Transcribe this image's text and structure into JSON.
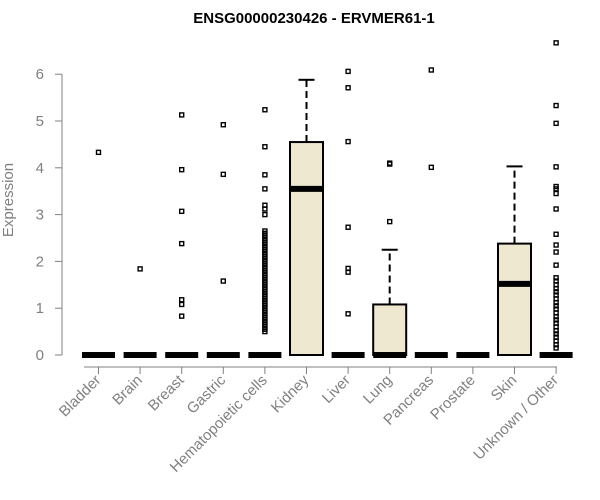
{
  "chart_data": {
    "type": "boxplot",
    "title": "ENSG00000230426 - ERVMER61-1",
    "xlabel": "",
    "ylabel": "Expression",
    "ylim": [
      0,
      6.7
    ],
    "yticks": [
      0,
      1,
      2,
      3,
      4,
      5,
      6
    ],
    "grid": false,
    "legend": "none",
    "colors": {
      "box_fill": "#EEE8D0",
      "box_stroke": "#000000",
      "median": "#000000",
      "axis": "#808080",
      "tick_text": "#808080"
    },
    "categories": [
      "Bladder",
      "Brain",
      "Breast",
      "Gastric",
      "Hematopoietic cells",
      "Kidney",
      "Liver",
      "Lung",
      "Pancreas",
      "Prostate",
      "Skin",
      "Unknown / Other"
    ],
    "boxes": [
      {
        "category": "Bladder",
        "min": 0,
        "q1": 0,
        "median": 0,
        "q3": 0,
        "max": 0,
        "outliers": [
          4.33
        ]
      },
      {
        "category": "Brain",
        "min": 0,
        "q1": 0,
        "median": 0,
        "q3": 0,
        "max": 0,
        "outliers": [
          1.84
        ]
      },
      {
        "category": "Breast",
        "min": 0,
        "q1": 0,
        "median": 0,
        "q3": 0,
        "max": 0,
        "outliers": [
          5.13,
          3.96,
          3.07,
          2.38,
          1.18,
          1.08,
          0.83
        ]
      },
      {
        "category": "Gastric",
        "min": 0,
        "q1": 0,
        "median": 0,
        "q3": 0,
        "max": 0,
        "outliers": [
          4.92,
          3.86,
          1.58
        ]
      },
      {
        "category": "Hematopoietic cells",
        "min": 0,
        "q1": 0,
        "median": 0,
        "q3": 0,
        "max": 0,
        "outliers": [
          5.24,
          4.45,
          3.85,
          3.55,
          3.2,
          3.12,
          3.0,
          2.65,
          2.6,
          2.55,
          2.5,
          2.45,
          2.4,
          2.35,
          2.3,
          2.25,
          2.2,
          2.15,
          2.1,
          2.05,
          2.0,
          1.95,
          1.9,
          1.85,
          1.8,
          1.75,
          1.7,
          1.65,
          1.6,
          1.55,
          1.5,
          1.45,
          1.4,
          1.35,
          1.3,
          1.25,
          1.2,
          1.15,
          1.1,
          1.05,
          1.0,
          0.95,
          0.9,
          0.85,
          0.8,
          0.75,
          0.7,
          0.65,
          0.6,
          0.55,
          0.5
        ]
      },
      {
        "category": "Kidney",
        "min": 0,
        "q1": 0,
        "median": 3.55,
        "q3": 4.55,
        "max": 5.88,
        "outliers": []
      },
      {
        "category": "Liver",
        "min": 0,
        "q1": 0,
        "median": 0,
        "q3": 0,
        "max": 0,
        "outliers": [
          6.06,
          5.71,
          4.56,
          2.73,
          1.85,
          1.77,
          0.88
        ]
      },
      {
        "category": "Lung",
        "min": 0,
        "q1": 0,
        "median": 0,
        "q3": 1.08,
        "max": 2.25,
        "outliers": [
          4.1,
          4.08,
          2.85
        ]
      },
      {
        "category": "Pancreas",
        "min": 0,
        "q1": 0,
        "median": 0,
        "q3": 0,
        "max": 0,
        "outliers": [
          6.09,
          4.01
        ]
      },
      {
        "category": "Prostate",
        "min": 0,
        "q1": 0,
        "median": 0,
        "q3": 0,
        "max": 0,
        "outliers": []
      },
      {
        "category": "Skin",
        "min": 0,
        "q1": 0,
        "median": 1.52,
        "q3": 2.38,
        "max": 4.03,
        "outliers": []
      },
      {
        "category": "Unknown / Other",
        "min": 0,
        "q1": 0,
        "median": 0,
        "q3": 0,
        "max": 0,
        "outliers": [
          6.67,
          5.33,
          4.95,
          4.02,
          3.6,
          3.55,
          3.45,
          3.12,
          2.58,
          2.35,
          2.2,
          1.92,
          1.65,
          1.58,
          1.5,
          1.42,
          1.35,
          1.28,
          1.2,
          1.12,
          1.05,
          0.98,
          0.9,
          0.82,
          0.75,
          0.68,
          0.6,
          0.52,
          0.45,
          0.38,
          0.3,
          0.22,
          0.15
        ]
      }
    ]
  }
}
